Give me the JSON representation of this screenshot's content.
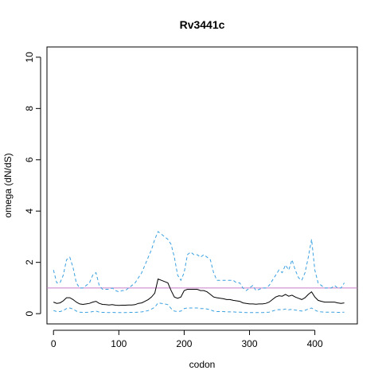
{
  "chart_data": {
    "type": "line",
    "title": "Rv3441c",
    "xlabel": "codon",
    "ylabel": "omega (dN/dS)",
    "xlim": [
      -10,
      465
    ],
    "ylim": [
      -0.4,
      10.4
    ],
    "x_ticks": [
      0,
      100,
      200,
      300,
      400
    ],
    "y_ticks": [
      0,
      2,
      4,
      6,
      8,
      10
    ],
    "reference_line": {
      "y": 1,
      "color": "#c77cc7"
    },
    "colors": {
      "estimate": "#000000",
      "bounds": "#3aa0e0"
    },
    "series": [
      {
        "role": "upper",
        "x": [
          0,
          5,
          10,
          15,
          20,
          25,
          30,
          35,
          40,
          45,
          50,
          55,
          60,
          65,
          70,
          75,
          80,
          85,
          90,
          95,
          100,
          105,
          110,
          115,
          120,
          125,
          130,
          135,
          140,
          145,
          150,
          155,
          160,
          165,
          170,
          175,
          180,
          185,
          190,
          195,
          200,
          205,
          210,
          215,
          220,
          225,
          230,
          235,
          240,
          245,
          250,
          255,
          260,
          265,
          270,
          275,
          280,
          285,
          290,
          295,
          300,
          305,
          310,
          315,
          320,
          325,
          330,
          335,
          340,
          345,
          350,
          355,
          360,
          365,
          370,
          375,
          380,
          385,
          390,
          395,
          400,
          405,
          410,
          415,
          420,
          425,
          430,
          435,
          440,
          445
        ],
        "values": [
          1.7,
          1.2,
          1.2,
          1.5,
          2.1,
          2.2,
          1.8,
          1.2,
          1.0,
          1.0,
          1.1,
          1.2,
          1.5,
          1.6,
          1.1,
          0.95,
          0.95,
          0.95,
          1.0,
          0.9,
          0.85,
          0.9,
          0.9,
          1.0,
          1.1,
          1.2,
          1.4,
          1.6,
          1.9,
          2.2,
          2.5,
          2.9,
          3.2,
          3.1,
          3.0,
          2.9,
          2.7,
          2.2,
          1.5,
          1.3,
          1.6,
          2.3,
          2.4,
          2.3,
          2.3,
          2.2,
          2.3,
          2.2,
          2.1,
          1.6,
          1.3,
          1.3,
          1.3,
          1.3,
          1.3,
          1.3,
          1.2,
          1.2,
          1.0,
          0.9,
          1.0,
          1.1,
          0.9,
          0.95,
          1.0,
          1.0,
          1.1,
          1.3,
          1.5,
          1.7,
          1.6,
          1.9,
          1.7,
          2.1,
          1.7,
          1.4,
          1.3,
          1.6,
          2.2,
          2.9,
          1.7,
          1.2,
          1.1,
          1.0,
          1.0,
          1.0,
          1.1,
          1.0,
          1.0,
          1.2
        ]
      },
      {
        "role": "estimate",
        "x": [
          0,
          5,
          10,
          15,
          20,
          25,
          30,
          35,
          40,
          45,
          50,
          55,
          60,
          65,
          70,
          75,
          80,
          85,
          90,
          95,
          100,
          105,
          110,
          115,
          120,
          125,
          130,
          135,
          140,
          145,
          150,
          155,
          160,
          165,
          170,
          175,
          180,
          185,
          190,
          195,
          200,
          205,
          210,
          215,
          220,
          225,
          230,
          235,
          240,
          245,
          250,
          255,
          260,
          265,
          270,
          275,
          280,
          285,
          290,
          295,
          300,
          305,
          310,
          315,
          320,
          325,
          330,
          335,
          340,
          345,
          350,
          355,
          360,
          365,
          370,
          375,
          380,
          385,
          390,
          395,
          400,
          405,
          410,
          415,
          420,
          425,
          430,
          435,
          440,
          445
        ],
        "values": [
          0.45,
          0.4,
          0.42,
          0.5,
          0.62,
          0.62,
          0.55,
          0.45,
          0.38,
          0.36,
          0.38,
          0.4,
          0.45,
          0.48,
          0.4,
          0.36,
          0.35,
          0.34,
          0.35,
          0.33,
          0.32,
          0.33,
          0.33,
          0.34,
          0.34,
          0.35,
          0.4,
          0.42,
          0.48,
          0.55,
          0.65,
          0.8,
          1.35,
          1.3,
          1.25,
          1.2,
          0.9,
          0.65,
          0.6,
          0.65,
          0.9,
          0.95,
          0.95,
          0.95,
          0.95,
          0.9,
          0.9,
          0.85,
          0.75,
          0.65,
          0.62,
          0.6,
          0.58,
          0.55,
          0.55,
          0.52,
          0.5,
          0.48,
          0.42,
          0.4,
          0.38,
          0.38,
          0.37,
          0.38,
          0.38,
          0.4,
          0.45,
          0.55,
          0.65,
          0.7,
          0.68,
          0.75,
          0.68,
          0.72,
          0.65,
          0.6,
          0.55,
          0.62,
          0.75,
          0.85,
          0.65,
          0.52,
          0.48,
          0.45,
          0.45,
          0.45,
          0.45,
          0.42,
          0.4,
          0.42
        ]
      },
      {
        "role": "lower",
        "x": [
          0,
          5,
          10,
          15,
          20,
          25,
          30,
          35,
          40,
          45,
          50,
          55,
          60,
          65,
          70,
          75,
          80,
          85,
          90,
          95,
          100,
          105,
          110,
          115,
          120,
          125,
          130,
          135,
          140,
          145,
          150,
          155,
          160,
          165,
          170,
          175,
          180,
          185,
          190,
          195,
          200,
          205,
          210,
          215,
          220,
          225,
          230,
          235,
          240,
          245,
          250,
          255,
          260,
          265,
          270,
          275,
          280,
          285,
          290,
          295,
          300,
          305,
          310,
          315,
          320,
          325,
          330,
          335,
          340,
          345,
          350,
          355,
          360,
          365,
          370,
          375,
          380,
          385,
          390,
          395,
          400,
          405,
          410,
          415,
          420,
          425,
          430,
          435,
          440,
          445
        ],
        "values": [
          0.12,
          0.08,
          0.08,
          0.12,
          0.2,
          0.22,
          0.18,
          0.1,
          0.06,
          0.05,
          0.05,
          0.06,
          0.08,
          0.1,
          0.06,
          0.05,
          0.05,
          0.04,
          0.05,
          0.04,
          0.04,
          0.04,
          0.04,
          0.05,
          0.05,
          0.05,
          0.06,
          0.07,
          0.09,
          0.12,
          0.18,
          0.25,
          0.42,
          0.4,
          0.38,
          0.35,
          0.2,
          0.1,
          0.08,
          0.1,
          0.2,
          0.22,
          0.22,
          0.22,
          0.22,
          0.2,
          0.2,
          0.18,
          0.15,
          0.1,
          0.08,
          0.08,
          0.08,
          0.07,
          0.07,
          0.07,
          0.06,
          0.06,
          0.05,
          0.04,
          0.04,
          0.04,
          0.04,
          0.04,
          0.04,
          0.05,
          0.06,
          0.1,
          0.14,
          0.16,
          0.15,
          0.18,
          0.15,
          0.17,
          0.14,
          0.12,
          0.1,
          0.13,
          0.18,
          0.22,
          0.14,
          0.08,
          0.07,
          0.06,
          0.06,
          0.06,
          0.06,
          0.05,
          0.05,
          0.06
        ]
      }
    ]
  }
}
